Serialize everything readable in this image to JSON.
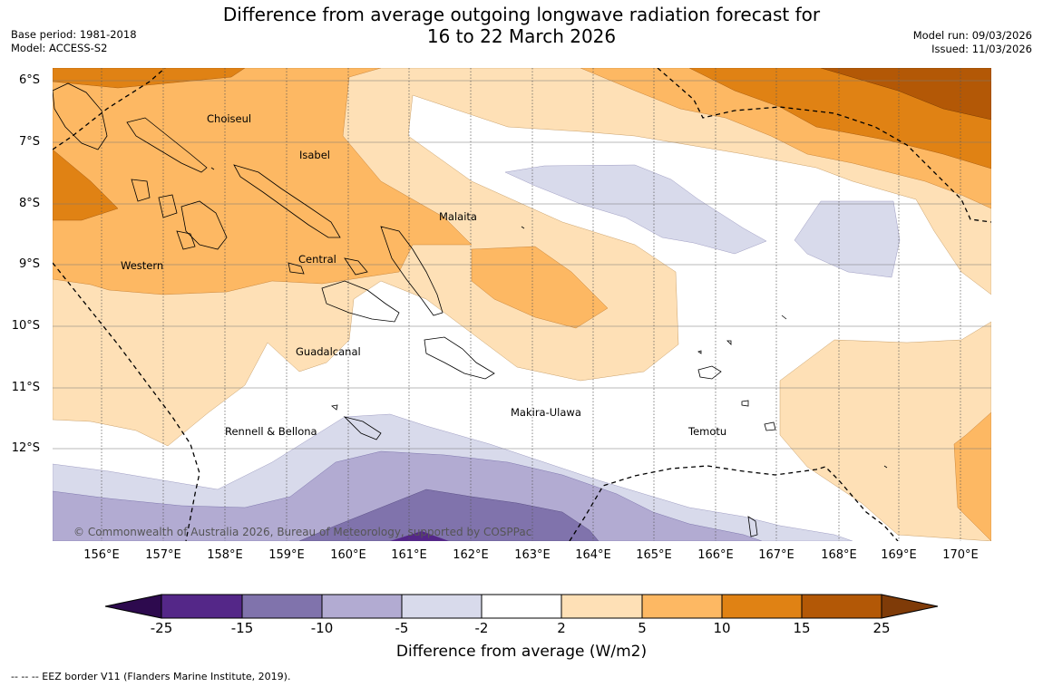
{
  "title_line1": "Difference from average outgoing longwave radiation forecast for",
  "title_line2": "16 to 22 March 2026",
  "base_period": "Base period: 1981-2018",
  "model": "Model: ACCESS-S2",
  "model_run": "Model run: 09/03/2026",
  "issued": "Issued: 11/03/2026",
  "lat_labels": [
    "6°S",
    "7°S",
    "8°S",
    "9°S",
    "10°S",
    "11°S",
    "12°S"
  ],
  "lon_labels": [
    "156°E",
    "157°E",
    "158°E",
    "159°E",
    "160°E",
    "161°E",
    "162°E",
    "163°E",
    "164°E",
    "165°E",
    "166°E",
    "167°E",
    "168°E",
    "169°E",
    "170°E"
  ],
  "place_labels": [
    "Choiseul",
    "Isabel",
    "Malaita",
    "Western",
    "Central",
    "Guadalcanal",
    "Makira-Ulawa",
    "Rennell & Bellona",
    "Temotu"
  ],
  "copyright": "© Commonwealth of Australia 2026, Bureau of Meteorology, supported by COSPPac",
  "colorbar": {
    "ticks": [
      "-25",
      "-15",
      "-10",
      "-5",
      "-2",
      "2",
      "5",
      "10",
      "15",
      "25"
    ],
    "colors": {
      "lt25": "#2d0a4e",
      "m25_m15": "#542788",
      "m15_m10": "#8073ac",
      "m10_m5": "#b2abd2",
      "m5_m2": "#d8daeb",
      "m2_2": "#ffffff",
      "p2_5": "#fee0b6",
      "p5_10": "#fdb863",
      "p10_15": "#e08214",
      "p15_25": "#b35806",
      "gt25": "#7f3b08"
    },
    "label": "Difference from average (W/m2)"
  },
  "footer": "--  --  -- EEZ border V11 (Flanders Marine Institute, 2019)."
}
